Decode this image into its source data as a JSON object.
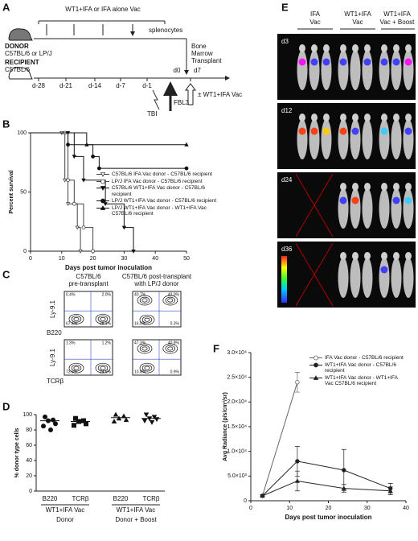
{
  "panels": [
    "A",
    "B",
    "C",
    "D",
    "E",
    "F"
  ],
  "schema": {
    "vac": "WT1+IFA or IFA alone Vac",
    "splenocytes": "splenocytes",
    "donor": "DONOR",
    "donor_strain": "C57BL/6 or LP/J",
    "recipient": "RECIPIENT",
    "recipient_strain": "C57BL/6",
    "transplant": [
      "Bone",
      "Marrow",
      "Transplant"
    ],
    "days": [
      "d-28",
      "d-21",
      "d-14",
      "d-7",
      "d-1",
      "d0",
      "d7"
    ],
    "tbi": "TBI",
    "fbl3": "FBL3",
    "boost": "± WT1+IFA Vac"
  },
  "flow": {
    "columns": [
      [
        "C57BL/6",
        "pre-transplant"
      ],
      [
        "C57BL/6 post-transplant",
        "with LP/J donor"
      ]
    ],
    "y_label": "Ly-9.1",
    "x_labels": [
      "B220",
      "TCRβ"
    ],
    "quadrants": [
      [
        "0.4%",
        "2.0%",
        "67.4%",
        "28.1%"
      ],
      [
        "40.7%",
        "43.0%",
        "16.0%",
        "0.3%"
      ],
      [
        "1.3%",
        "1.2%",
        "73.5%",
        "24.5%"
      ],
      [
        "47.3%",
        "40.9%",
        "10.8%",
        "0.9%"
      ]
    ]
  },
  "imaging": {
    "groups": [
      [
        "IFA",
        "Vac"
      ],
      [
        "WT1+IFA",
        "Vac"
      ],
      [
        "WT1+IFA",
        "Vac + Boost"
      ]
    ],
    "days": [
      "d3",
      "d12",
      "d24",
      "d36"
    ]
  },
  "chart_data": [
    {
      "type": "survival",
      "ylabel": "Percent survival",
      "xlabel": "Days post tumor inoculation",
      "xlim": [
        0,
        50
      ],
      "xticks": [
        0,
        10,
        20,
        30,
        40,
        50
      ],
      "ylim": [
        0,
        100
      ],
      "yticks": [
        0,
        50,
        100
      ],
      "series": [
        {
          "name": "C57BL/6 IFA Vac donor - C57BL/6 recipient",
          "color": "#444",
          "marker": "tri-down-open",
          "x": [
            0,
            10,
            11,
            12,
            15,
            16
          ],
          "values": [
            100,
            100,
            60,
            40,
            20,
            0
          ]
        },
        {
          "name": "LP/J IFA Vac donor - C57BL/6 recipient",
          "color": "#444",
          "marker": "circle-open",
          "x": [
            0,
            11,
            12,
            14,
            17,
            20
          ],
          "values": [
            100,
            100,
            60,
            40,
            20,
            0
          ]
        },
        {
          "name": "C57BL/6 WT1+IFA Vac donor - C57BL/6 recipient",
          "color": "#111",
          "marker": "tri-down",
          "x": [
            0,
            12,
            14,
            17,
            24,
            30,
            33
          ],
          "values": [
            100,
            100,
            80,
            60,
            40,
            20,
            0
          ]
        },
        {
          "name": "LP/J WT1+IFA Vac donor - C57BL/6 recipient",
          "color": "#111",
          "marker": "circle",
          "x": [
            0,
            12,
            20,
            22,
            50
          ],
          "values": [
            100,
            90,
            80,
            70,
            70
          ]
        },
        {
          "name": "LP/J WT1+IFA Vac donor - WT1+IFA Vac C57BL/6 recipient",
          "color": "#111",
          "marker": "tri-up",
          "x": [
            0,
            18,
            50
          ],
          "values": [
            100,
            90,
            90
          ]
        }
      ]
    },
    {
      "type": "strip",
      "ylabel": "% donor type cells",
      "ylim": [
        0,
        100
      ],
      "yticks": [
        0,
        20,
        40,
        60,
        80,
        100
      ],
      "categories": [
        "B220",
        "TCRβ",
        "B220",
        "TCRβ"
      ],
      "groups": [
        {
          "label": "WT1+IFA Vac",
          "sublabel": "Donor"
        },
        {
          "label": "WT1+IFA Vac",
          "sublabel": "Donor + Boost"
        }
      ],
      "markers": [
        "circle",
        "square",
        "tri-up",
        "tri-down"
      ],
      "values": [
        [
          97,
          93,
          92,
          88,
          85,
          80
        ],
        [
          95,
          92,
          91,
          88,
          86
        ],
        [
          100,
          98,
          95,
          93,
          91
        ],
        [
          100,
          97,
          95,
          94,
          92,
          90
        ]
      ],
      "means": [
        92,
        91,
        96,
        95
      ]
    },
    {
      "type": "line",
      "ylabel": "Avg Radiance (p/s/cm²/sr)",
      "xlabel": "Days post tumor inoculation",
      "xlim": [
        0,
        40
      ],
      "xticks": [
        0,
        10,
        20,
        30,
        40
      ],
      "ylim": [
        0,
        30000
      ],
      "yticks": [
        0,
        {
          "value": 5000,
          "label": "5.0×10³"
        },
        {
          "value": 10000,
          "label": "1.0×10⁴"
        },
        {
          "value": 15000,
          "label": "1.5×10⁴"
        },
        {
          "value": 20000,
          "label": "2.0×10⁴"
        },
        {
          "value": 25000,
          "label": "2.5×10⁴"
        },
        {
          "value": 30000,
          "label": "3.0×10⁴"
        }
      ],
      "series": [
        {
          "name": "IFA Vac donor - C57BL/6 recipient",
          "color": "#666",
          "marker": "circle-open",
          "x": [
            3,
            12
          ],
          "values": [
            1000,
            24000
          ],
          "errors": [
            200,
            2000
          ]
        },
        {
          "name": "WT1+IFA Vac donor - C57BL/6 recipient",
          "color": "#222",
          "marker": "circle",
          "x": [
            3,
            12,
            24,
            36
          ],
          "values": [
            1000,
            8000,
            6200,
            2500
          ],
          "errors": [
            200,
            3000,
            4200,
            1000
          ]
        },
        {
          "name": "WT1+IFA Vac donor - WT1+IFA Vac C57BL/6 recipient",
          "color": "#222",
          "marker": "tri-up",
          "x": [
            3,
            12,
            24,
            36
          ],
          "values": [
            1000,
            4000,
            2500,
            2000
          ],
          "errors": [
            200,
            2000,
            800,
            800
          ]
        }
      ]
    }
  ]
}
